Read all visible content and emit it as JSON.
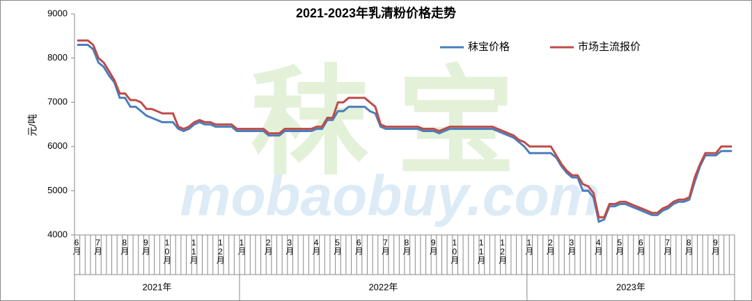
{
  "chart_data": {
    "type": "line",
    "title": "2021-2023年乳清粉价格走势",
    "y_label": "元/吨",
    "watermark_logo": "秣宝",
    "watermark": "mobaobuy.com",
    "categories": [
      "6月",
      null,
      null,
      null,
      "7月",
      null,
      null,
      null,
      null,
      "8月",
      null,
      null,
      null,
      "9月",
      null,
      null,
      null,
      "10月",
      null,
      null,
      null,
      null,
      "11月",
      null,
      null,
      null,
      null,
      "12月",
      null,
      null,
      null,
      "1月",
      null,
      null,
      null,
      null,
      "2月",
      null,
      null,
      null,
      "3月",
      null,
      null,
      null,
      null,
      "4月",
      null,
      null,
      null,
      "5月",
      null,
      null,
      null,
      "6月",
      null,
      null,
      null,
      null,
      "7月",
      null,
      null,
      null,
      "8月",
      null,
      null,
      null,
      null,
      "9月",
      null,
      null,
      null,
      "10月",
      null,
      null,
      null,
      null,
      "11月",
      null,
      null,
      null,
      "12月",
      null,
      null,
      null,
      null,
      "1月",
      null,
      null,
      null,
      "2月",
      null,
      null,
      null,
      "3月",
      null,
      null,
      null,
      null,
      "4月",
      null,
      null,
      null,
      "5月",
      null,
      null,
      null,
      "6月",
      null,
      null,
      null,
      null,
      "7月",
      null,
      null,
      null,
      "8月",
      null,
      null,
      null,
      null,
      "9月",
      null,
      null,
      null
    ],
    "years": [
      "2021年",
      "2022年",
      "2023年"
    ],
    "series": [
      {
        "name": "秣宝价格",
        "color": "#4a7ebb",
        "values": [
          8300,
          8300,
          8300,
          8200,
          7900,
          7800,
          7600,
          7450,
          7100,
          7100,
          6900,
          6900,
          6800,
          6700,
          6650,
          6600,
          6550,
          6550,
          6550,
          6400,
          6350,
          6400,
          6500,
          6550,
          6500,
          6500,
          6450,
          6450,
          6450,
          6450,
          6350,
          6350,
          6350,
          6350,
          6350,
          6350,
          6250,
          6250,
          6250,
          6350,
          6350,
          6350,
          6350,
          6350,
          6350,
          6400,
          6400,
          6600,
          6600,
          6800,
          6800,
          6900,
          6900,
          6900,
          6900,
          6800,
          6750,
          6450,
          6400,
          6400,
          6400,
          6400,
          6400,
          6400,
          6400,
          6350,
          6350,
          6350,
          6300,
          6350,
          6400,
          6400,
          6400,
          6400,
          6400,
          6400,
          6400,
          6400,
          6400,
          6350,
          6300,
          6250,
          6200,
          6100,
          6000,
          5850,
          5850,
          5850,
          5850,
          5850,
          5750,
          5550,
          5400,
          5300,
          5300,
          5000,
          5000,
          4850,
          4300,
          4350,
          4650,
          4650,
          4700,
          4700,
          4650,
          4600,
          4550,
          4500,
          4450,
          4450,
          4550,
          4600,
          4700,
          4750,
          4750,
          4800,
          5200,
          5550,
          5800,
          5800,
          5800,
          5900,
          5900,
          5900
        ]
      },
      {
        "name": "市场主流报价",
        "color": "#be4b48",
        "values": [
          8400,
          8400,
          8400,
          8300,
          8000,
          7900,
          7700,
          7500,
          7200,
          7200,
          7050,
          7050,
          7000,
          6850,
          6850,
          6800,
          6750,
          6750,
          6750,
          6450,
          6400,
          6450,
          6550,
          6600,
          6550,
          6550,
          6500,
          6500,
          6500,
          6500,
          6400,
          6400,
          6400,
          6400,
          6400,
          6400,
          6300,
          6300,
          6300,
          6400,
          6400,
          6400,
          6400,
          6400,
          6400,
          6450,
          6450,
          6650,
          6650,
          7000,
          7000,
          7100,
          7100,
          7100,
          7100,
          7000,
          6900,
          6500,
          6450,
          6450,
          6450,
          6450,
          6450,
          6450,
          6450,
          6400,
          6400,
          6400,
          6350,
          6400,
          6450,
          6450,
          6450,
          6450,
          6450,
          6450,
          6450,
          6450,
          6450,
          6400,
          6350,
          6300,
          6250,
          6150,
          6100,
          6000,
          6000,
          6000,
          6000,
          6000,
          5800,
          5600,
          5450,
          5350,
          5350,
          5150,
          5100,
          4950,
          4400,
          4400,
          4700,
          4700,
          4750,
          4750,
          4700,
          4650,
          4600,
          4550,
          4500,
          4500,
          4600,
          4650,
          4750,
          4800,
          4800,
          4850,
          5300,
          5600,
          5850,
          5850,
          5850,
          6000,
          6000,
          6000
        ]
      }
    ],
    "ylim": [
      4000,
      9000
    ],
    "yticks": [
      4000,
      5000,
      6000,
      7000,
      8000,
      9000
    ]
  }
}
